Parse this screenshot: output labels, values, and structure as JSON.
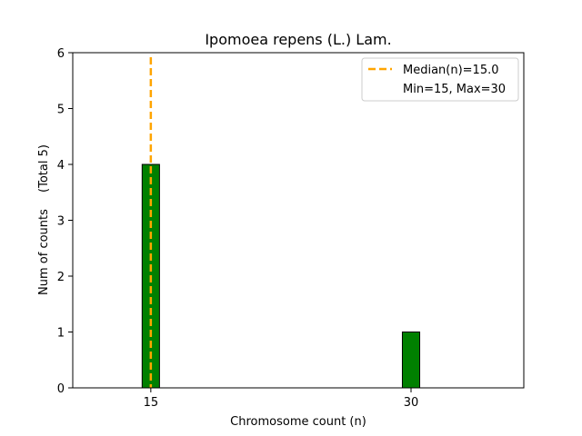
{
  "chart_data": {
    "type": "bar",
    "title": "Ipomoea repens (L.) Lam.",
    "xlabel": "Chromosome count (n)",
    "ylabel": "Num of counts",
    "ylabel_secondary": "(Total 5)",
    "x": [
      15,
      30
    ],
    "values": [
      4,
      1
    ],
    "xticks": [
      15,
      30
    ],
    "yticks": [
      0,
      1,
      2,
      3,
      4,
      5,
      6
    ],
    "xlim": [
      10.5,
      36.5
    ],
    "ylim": [
      0,
      6
    ],
    "bar_width": 1,
    "bar_color": "#008000",
    "bar_edge_color": "#000000",
    "median": 15.0,
    "median_color": "#FFA500",
    "min": 15,
    "max": 30,
    "grid": false,
    "legend_placement": "top-right",
    "legend": [
      {
        "label": "Median(n)=15.0",
        "style": "dashed-line"
      },
      {
        "label": "Min=15, Max=30",
        "style": "none"
      }
    ]
  }
}
